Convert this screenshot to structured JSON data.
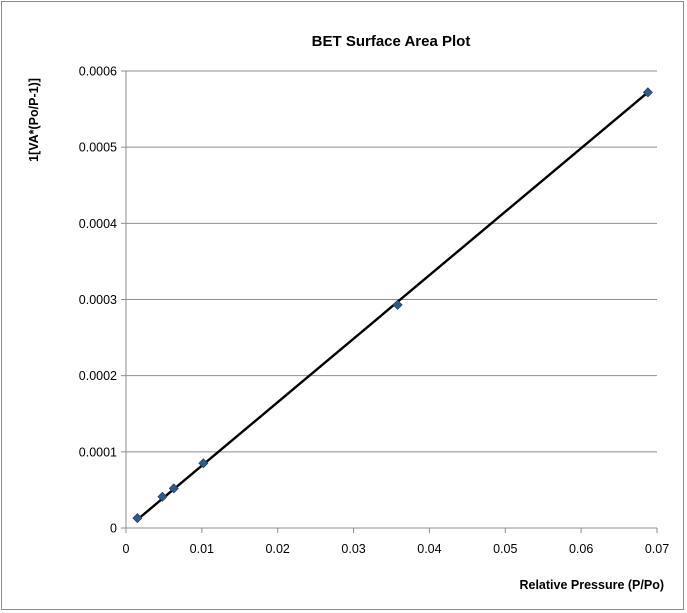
{
  "chart_data": {
    "type": "scatter",
    "title": "BET Surface Area Plot",
    "xlabel": "Relative Pressure (P/Po)",
    "ylabel": "1[VA*(Po/P-1)]",
    "xlim": [
      0,
      0.07
    ],
    "ylim": [
      0,
      0.0006
    ],
    "x_ticks": [
      0,
      0.01,
      0.02,
      0.03,
      0.04,
      0.05,
      0.06,
      0.07
    ],
    "x_tick_labels": [
      "0",
      "0.01",
      "0.02",
      "0.03",
      "0.04",
      "0.05",
      "0.06",
      "0.07"
    ],
    "y_ticks": [
      0,
      0.0001,
      0.0002,
      0.0003,
      0.0004,
      0.0005,
      0.0006
    ],
    "y_tick_labels": [
      "0",
      "0.0001",
      "0.0002",
      "0.0003",
      "0.0004",
      "0.0005",
      "0.0006"
    ],
    "grid": "horizontal",
    "legend": "none",
    "series": [
      {
        "x": [
          0.0015,
          0.0048,
          0.0063,
          0.0102,
          0.0358,
          0.0688
        ],
        "y": [
          1.3e-05,
          4.1e-05,
          5.2e-05,
          8.5e-05,
          0.000293,
          0.000572
        ],
        "color": "#2e5a8c",
        "marker": "diamond"
      }
    ],
    "trendline": {
      "x": [
        0.0015,
        0.0688
      ],
      "y": [
        1.1e-05,
        0.000572
      ],
      "color": "#000000"
    }
  }
}
